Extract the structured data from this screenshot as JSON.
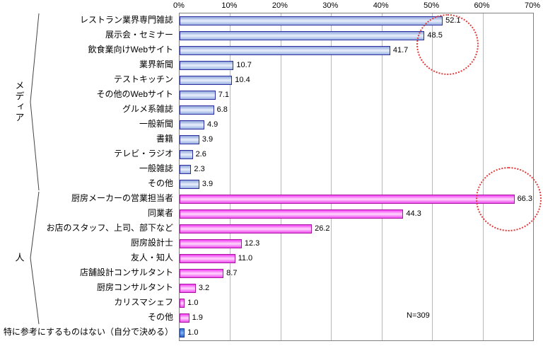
{
  "chart_data": {
    "type": "bar",
    "orientation": "horizontal",
    "xlim": [
      0,
      70
    ],
    "grid": true,
    "ticks": [
      "0%",
      "10%",
      "20%",
      "30%",
      "40%",
      "50%",
      "60%",
      "70%"
    ],
    "groups": [
      {
        "key": "media",
        "label": "メディア"
      },
      {
        "key": "people",
        "label": "人"
      }
    ],
    "rows": [
      {
        "label": "レストラン業界専門雑誌",
        "value": 52.1,
        "group": "media"
      },
      {
        "label": "展示会・セミナー",
        "value": 48.5,
        "group": "media"
      },
      {
        "label": "飲食業向けWebサイト",
        "value": 41.7,
        "group": "media"
      },
      {
        "label": "業界新聞",
        "value": 10.7,
        "group": "media"
      },
      {
        "label": "テストキッチン",
        "value": 10.4,
        "group": "media"
      },
      {
        "label": "その他のWebサイト",
        "value": 7.1,
        "group": "media"
      },
      {
        "label": "グルメ系雑誌",
        "value": 6.8,
        "group": "media"
      },
      {
        "label": "一般新聞",
        "value": 4.9,
        "group": "media"
      },
      {
        "label": "書籍",
        "value": 3.9,
        "group": "media"
      },
      {
        "label": "テレビ・ラジオ",
        "value": 2.6,
        "group": "media"
      },
      {
        "label": "一般雑誌",
        "value": 2.3,
        "group": "media"
      },
      {
        "label": "その他",
        "value": 3.9,
        "group": "media"
      },
      {
        "label": "厨房メーカーの営業担当者",
        "value": 66.3,
        "group": "people"
      },
      {
        "label": "同業者",
        "value": 44.3,
        "group": "people"
      },
      {
        "label": "お店のスタッフ、上司、部下など",
        "value": 26.2,
        "group": "people"
      },
      {
        "label": "厨房設計士",
        "value": 12.3,
        "group": "people"
      },
      {
        "label": "友人・知人",
        "value": 11.0,
        "group": "people"
      },
      {
        "label": "店舗設計コンサルタント",
        "value": 8.7,
        "group": "people"
      },
      {
        "label": "厨房コンサルタント",
        "value": 3.2,
        "group": "people"
      },
      {
        "label": "カリスマシェフ",
        "value": 1.0,
        "group": "people"
      },
      {
        "label": "その他",
        "value": 1.9,
        "group": "people"
      },
      {
        "label": "特に参考にするものはない（自分で決める）",
        "value": 1.0,
        "group": "single"
      }
    ],
    "annotations": {
      "sample_size": "N=309"
    }
  },
  "colors": {
    "highlight_circle": "#e23a3a",
    "gridline": "#b8b8b8",
    "media": {
      "border": "#2e2e9e",
      "fill": [
        "#8ea6da",
        "#eaf0fc",
        "#98b0e2"
      ]
    },
    "people": {
      "border": "#a818a0",
      "fill": [
        "#f23cf2",
        "#ffd9fd",
        "#f04cf0"
      ]
    },
    "single": {
      "border": "#1a3f9e",
      "fill": [
        "#2f6fd0",
        "#7fb3f0",
        "#2a62c4"
      ]
    }
  }
}
